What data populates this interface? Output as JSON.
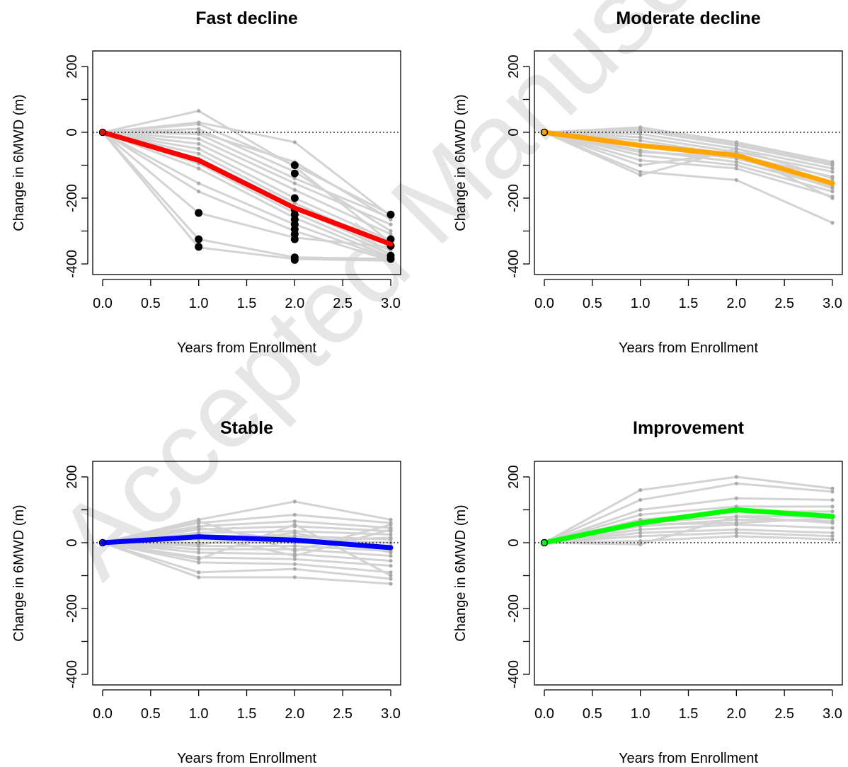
{
  "watermark": "Accepted Manuscript",
  "chart_data": [
    {
      "type": "line",
      "title": "Fast decline",
      "xlabel": "Years from Enrollment",
      "ylabel": "Change in 6MWD (m)",
      "xlim": [
        0,
        3
      ],
      "ylim": [
        -400,
        200
      ],
      "x_ticks": [
        "0.0",
        "0.5",
        "1.0",
        "1.5",
        "2.0",
        "2.5",
        "3.0"
      ],
      "y_ticks": [
        "-400",
        "-200",
        "0",
        "200"
      ],
      "reference_line": 0,
      "mean_color": "#ff0000",
      "individual_color": "#d3d3d3",
      "mean": {
        "x": [
          0,
          1,
          2,
          3
        ],
        "y": [
          0,
          -85,
          -230,
          -340
        ]
      },
      "individuals": [
        [
          0,
          65,
          -105,
          -335
        ],
        [
          0,
          25,
          -100,
          -250
        ],
        [
          0,
          10,
          -120,
          -300
        ],
        [
          0,
          -5,
          -140,
          -260
        ],
        [
          0,
          -20,
          -155,
          -280
        ],
        [
          0,
          -35,
          -175,
          -310
        ],
        [
          0,
          -50,
          -200,
          -330
        ],
        [
          0,
          -65,
          -215,
          -345
        ],
        [
          0,
          -80,
          -230,
          -360
        ],
        [
          0,
          -95,
          -245,
          -370
        ],
        [
          0,
          -110,
          -260,
          -380
        ],
        [
          0,
          -155,
          -280,
          -385
        ],
        [
          0,
          -180,
          -300,
          -390
        ],
        [
          0,
          30,
          -30,
          -255
        ],
        [
          0,
          0,
          -90,
          -265
        ],
        [
          0,
          -245,
          -320,
          -350
        ],
        [
          0,
          -325,
          -380,
          -385
        ],
        [
          0,
          -350,
          -385,
          -390
        ]
      ],
      "dropout_points": [
        {
          "x": 1,
          "y": -245
        },
        {
          "x": 1,
          "y": -325
        },
        {
          "x": 1,
          "y": -348
        },
        {
          "x": 2,
          "y": -100
        },
        {
          "x": 2,
          "y": -125
        },
        {
          "x": 2,
          "y": -200
        },
        {
          "x": 2,
          "y": -235
        },
        {
          "x": 2,
          "y": -250
        },
        {
          "x": 2,
          "y": -265
        },
        {
          "x": 2,
          "y": -280
        },
        {
          "x": 2,
          "y": -295
        },
        {
          "x": 2,
          "y": -310
        },
        {
          "x": 2,
          "y": -325
        },
        {
          "x": 2,
          "y": -380
        },
        {
          "x": 2,
          "y": -388
        },
        {
          "x": 3,
          "y": -250
        },
        {
          "x": 3,
          "y": -325
        },
        {
          "x": 3,
          "y": -345
        },
        {
          "x": 3,
          "y": -375
        },
        {
          "x": 3,
          "y": -385
        }
      ]
    },
    {
      "type": "line",
      "title": "Moderate decline",
      "xlabel": "Years from Enrollment",
      "ylabel": "Change in 6MWD (m)",
      "xlim": [
        0,
        3
      ],
      "ylim": [
        -400,
        200
      ],
      "x_ticks": [
        "0.0",
        "0.5",
        "1.0",
        "1.5",
        "2.0",
        "2.5",
        "3.0"
      ],
      "y_ticks": [
        "-400",
        "-200",
        "0",
        "200"
      ],
      "reference_line": 0,
      "mean_color": "#ffa500",
      "individual_color": "#d3d3d3",
      "mean": {
        "x": [
          0,
          1,
          2,
          3
        ],
        "y": [
          0,
          -40,
          -70,
          -155
        ]
      },
      "individuals": [
        [
          0,
          15,
          -30,
          -90
        ],
        [
          0,
          5,
          -40,
          -100
        ],
        [
          0,
          -5,
          -50,
          -110
        ],
        [
          0,
          -15,
          -60,
          -120
        ],
        [
          0,
          -25,
          -70,
          -135
        ],
        [
          0,
          -40,
          -80,
          -150
        ],
        [
          0,
          -55,
          -90,
          -165
        ],
        [
          0,
          -70,
          -100,
          -180
        ],
        [
          0,
          -85,
          -110,
          -195
        ],
        [
          0,
          -100,
          -60,
          -200
        ],
        [
          0,
          -120,
          -145,
          -275
        ],
        [
          0,
          -130,
          -50,
          -140
        ],
        [
          0,
          10,
          -35,
          -95
        ],
        [
          0,
          -60,
          -75,
          -170
        ]
      ],
      "dropout_points": []
    },
    {
      "type": "line",
      "title": "Stable",
      "xlabel": "Years from Enrollment",
      "ylabel": "Change in 6MWD (m)",
      "xlim": [
        0,
        3
      ],
      "ylim": [
        -400,
        200
      ],
      "x_ticks": [
        "0.0",
        "0.5",
        "1.0",
        "1.5",
        "2.0",
        "2.5",
        "3.0"
      ],
      "y_ticks": [
        "-400",
        "-200",
        "0",
        "200"
      ],
      "reference_line": 0,
      "mean_color": "#0000ff",
      "individual_color": "#d3d3d3",
      "mean": {
        "x": [
          0,
          1,
          2,
          3
        ],
        "y": [
          0,
          18,
          8,
          -15
        ]
      },
      "individuals": [
        [
          0,
          70,
          125,
          70
        ],
        [
          0,
          60,
          85,
          60
        ],
        [
          0,
          50,
          65,
          45
        ],
        [
          0,
          40,
          50,
          35
        ],
        [
          0,
          30,
          35,
          25
        ],
        [
          0,
          20,
          20,
          10
        ],
        [
          0,
          10,
          10,
          0
        ],
        [
          0,
          0,
          0,
          -10
        ],
        [
          0,
          -10,
          -10,
          -25
        ],
        [
          0,
          -20,
          -20,
          -40
        ],
        [
          0,
          -30,
          -35,
          -55
        ],
        [
          0,
          -45,
          -50,
          -70
        ],
        [
          0,
          -60,
          -65,
          -90
        ],
        [
          0,
          -90,
          -80,
          -110
        ],
        [
          0,
          -105,
          -105,
          -125
        ],
        [
          0,
          45,
          5,
          15
        ],
        [
          0,
          -5,
          30,
          -30
        ],
        [
          0,
          25,
          -40,
          40
        ],
        [
          0,
          -50,
          55,
          -100
        ],
        [
          0,
          65,
          -25,
          55
        ]
      ],
      "dropout_points": []
    },
    {
      "type": "line",
      "title": "Improvement",
      "xlabel": "Years from Enrollment",
      "ylabel": "Change in 6MWD (m)",
      "xlim": [
        0,
        3
      ],
      "ylim": [
        -400,
        200
      ],
      "x_ticks": [
        "0.0",
        "0.5",
        "1.0",
        "1.5",
        "2.0",
        "2.5",
        "3.0"
      ],
      "y_ticks": [
        "-400",
        "-200",
        "0",
        "200"
      ],
      "reference_line": 0,
      "mean_color": "#00ff00",
      "individual_color": "#d3d3d3",
      "mean": {
        "x": [
          0,
          1,
          2,
          3
        ],
        "y": [
          0,
          60,
          100,
          80
        ]
      },
      "individuals": [
        [
          0,
          160,
          200,
          165
        ],
        [
          0,
          130,
          180,
          155
        ],
        [
          0,
          100,
          135,
          130
        ],
        [
          0,
          85,
          110,
          110
        ],
        [
          0,
          70,
          95,
          95
        ],
        [
          0,
          60,
          80,
          80
        ],
        [
          0,
          50,
          70,
          65
        ],
        [
          0,
          40,
          55,
          45
        ],
        [
          0,
          30,
          40,
          30
        ],
        [
          0,
          20,
          30,
          20
        ],
        [
          0,
          5,
          20,
          10
        ],
        [
          0,
          -5,
          80,
          60
        ],
        [
          0,
          55,
          60,
          75
        ]
      ],
      "dropout_points": []
    }
  ]
}
